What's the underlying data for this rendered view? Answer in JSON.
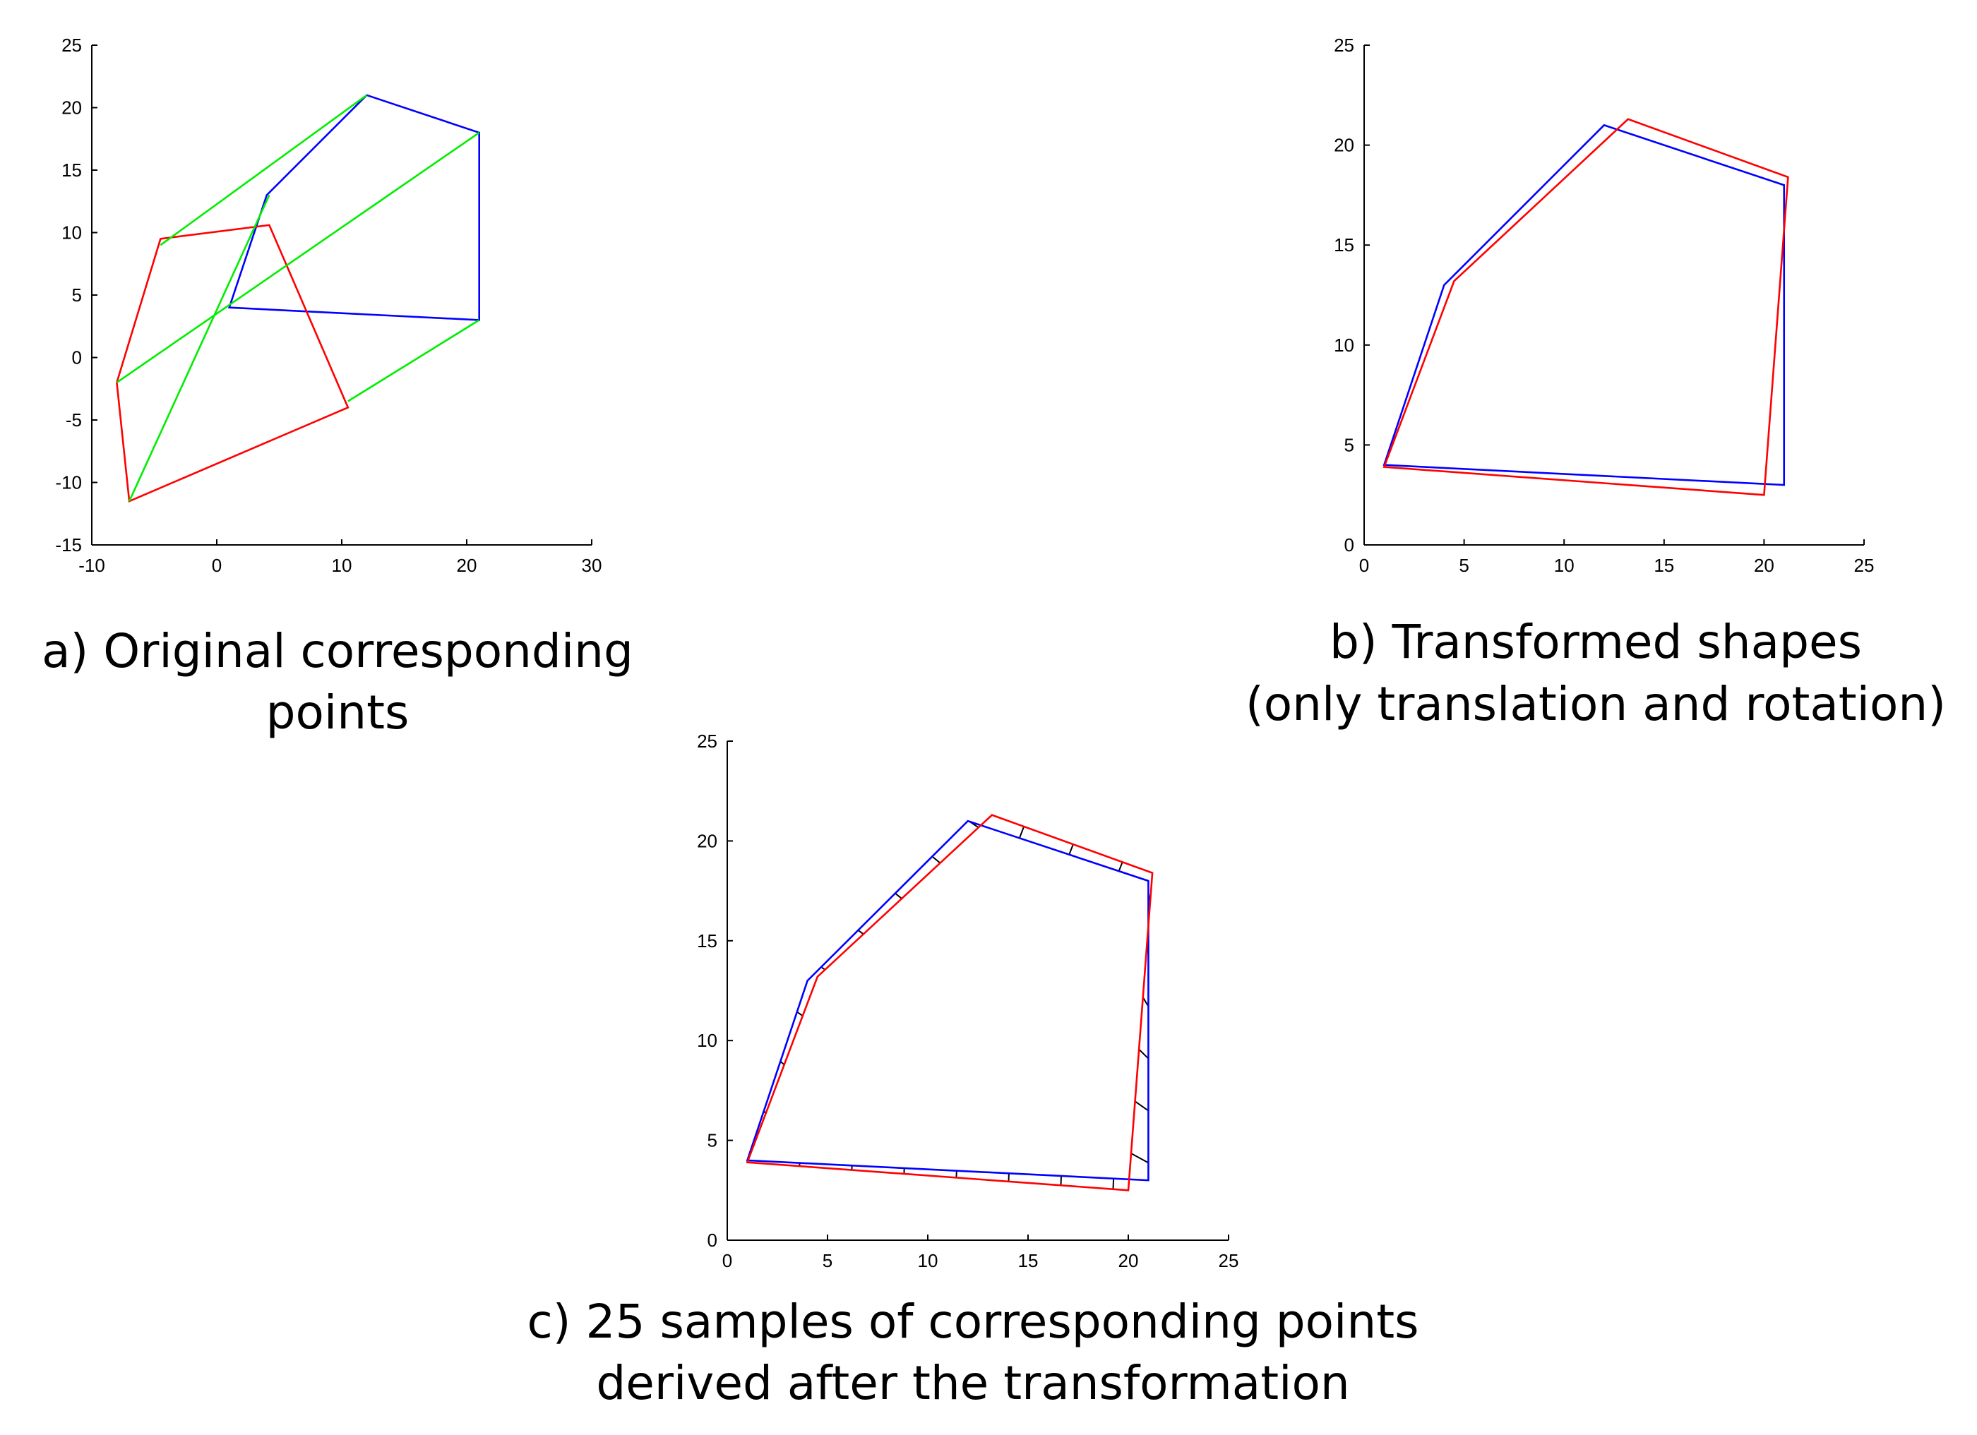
{
  "chart_data": [
    {
      "id": "a",
      "type": "line",
      "caption": [
        "a) Original corresponding",
        "points"
      ],
      "xlim": [
        -10,
        30
      ],
      "ylim": [
        -15,
        25
      ],
      "xticks": [
        -10,
        0,
        10,
        20,
        30
      ],
      "yticks": [
        -15,
        -10,
        -5,
        0,
        5,
        10,
        15,
        20,
        25
      ],
      "grid": false,
      "series": [
        {
          "color": "#0000ff",
          "closed": true,
          "points": [
            [
              1,
              4
            ],
            [
              4,
              13
            ],
            [
              12,
              21
            ],
            [
              21,
              18
            ],
            [
              21,
              3
            ]
          ]
        },
        {
          "color": "#ff0000",
          "closed": true,
          "points": [
            [
              -7,
              -11.5
            ],
            [
              -8,
              -2
            ],
            [
              -4.5,
              9.5
            ],
            [
              4.2,
              10.6
            ],
            [
              10.5,
              -4
            ]
          ]
        },
        {
          "color": "#00ee00",
          "segments": [
            [
              [
                -4.5,
                9
              ],
              [
                12,
                21
              ]
            ],
            [
              [
                -8,
                -2
              ],
              [
                21,
                18
              ]
            ],
            [
              [
                -7,
                -11.5
              ],
              [
                4.2,
                13
              ]
            ],
            [
              [
                10.5,
                -3.5
              ],
              [
                21,
                3
              ]
            ]
          ]
        }
      ]
    },
    {
      "id": "b",
      "type": "line",
      "caption": [
        "b) Transformed shapes",
        "(only translation and rotation)"
      ],
      "xlim": [
        0,
        25
      ],
      "ylim": [
        0,
        25
      ],
      "xticks": [
        0,
        5,
        10,
        15,
        20,
        25
      ],
      "yticks": [
        0,
        5,
        10,
        15,
        20,
        25
      ],
      "grid": false,
      "series": [
        {
          "color": "#0000ff",
          "closed": true,
          "points": [
            [
              1,
              4
            ],
            [
              4,
              13
            ],
            [
              12,
              21
            ],
            [
              21,
              18
            ],
            [
              21,
              3
            ]
          ]
        },
        {
          "color": "#ff0000",
          "closed": true,
          "points": [
            [
              1,
              3.9
            ],
            [
              4.5,
              13.2
            ],
            [
              13.2,
              21.3
            ],
            [
              21.2,
              18.4
            ],
            [
              20,
              2.5
            ]
          ]
        }
      ]
    },
    {
      "id": "c",
      "type": "line",
      "caption": [
        "c) 25 samples of corresponding points",
        "derived after the transformation"
      ],
      "xlim": [
        0,
        25
      ],
      "ylim": [
        0,
        25
      ],
      "xticks": [
        0,
        5,
        10,
        15,
        20,
        25
      ],
      "yticks": [
        0,
        5,
        10,
        15,
        20,
        25
      ],
      "grid": false,
      "samples": 25,
      "series": [
        {
          "color": "#0000ff",
          "closed": true,
          "points": [
            [
              1,
              4
            ],
            [
              4,
              13
            ],
            [
              12,
              21
            ],
            [
              21,
              18
            ],
            [
              21,
              3
            ]
          ]
        },
        {
          "color": "#ff0000",
          "closed": true,
          "points": [
            [
              1,
              3.9
            ],
            [
              4.5,
              13.2
            ],
            [
              13.2,
              21.3
            ],
            [
              21.2,
              18.4
            ],
            [
              20,
              2.5
            ]
          ]
        }
      ],
      "correspondence_color": "#000000"
    }
  ]
}
